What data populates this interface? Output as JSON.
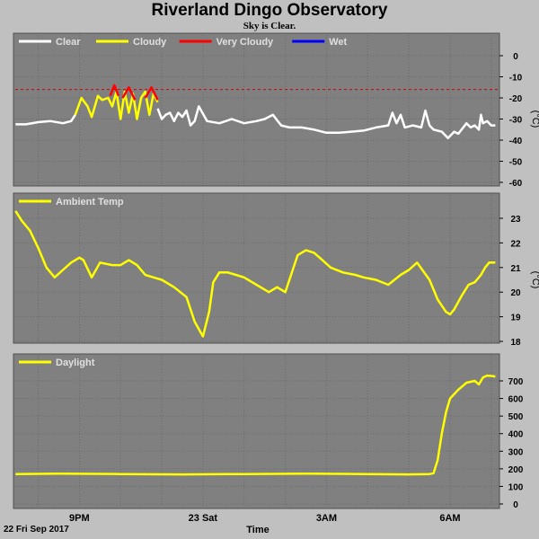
{
  "title": "Riverland Dingo Observatory",
  "subtitle": "Sky is Clear.",
  "date_label": "22 Fri Sep 2017",
  "time_label": "Time",
  "colors": {
    "panel_bg": "#808080",
    "frame": "#c0c0c0",
    "clear": "#ffffff",
    "cloudy": "#ffff00",
    "very_cloudy": "#ff0000",
    "wet": "#0000ff",
    "threshold": "#cc0000",
    "temp": "#ffff00",
    "daylight": "#ffff00"
  },
  "chart_data": [
    {
      "type": "line",
      "panel": "sky",
      "legend": [
        "Clear",
        "Cloudy",
        "Very Cloudy",
        "Wet"
      ],
      "ylabel": "(°C)",
      "ylim": [
        -60,
        0
      ],
      "yticks": [
        0,
        -10,
        -20,
        -30,
        -40,
        -50,
        -60
      ],
      "xlim": [
        19.4,
        31.2
      ],
      "xticks": [
        {
          "x": 21,
          "label": "9PM"
        },
        {
          "x": 24,
          "label": "23 Sat"
        },
        {
          "x": 27,
          "label": "3AM"
        },
        {
          "x": 30,
          "label": "6AM"
        }
      ],
      "threshold": -16,
      "series": [
        {
          "name": "Clear",
          "x": [
            19.45,
            19.7,
            20.0,
            20.3,
            20.6,
            20.8,
            20.9
          ],
          "y": [
            -32.5,
            -32.5,
            -31.5,
            -31,
            -32,
            -31,
            -28
          ]
        },
        {
          "name": "Cloudy",
          "x": [
            20.9,
            21.05,
            21.2,
            21.3,
            21.45,
            21.55,
            21.7,
            21.8,
            21.9,
            22.0,
            22.1,
            22.2,
            22.3,
            22.4,
            22.5,
            22.6,
            22.7,
            22.8,
            22.9
          ],
          "y": [
            -28,
            -20,
            -24,
            -29,
            -19,
            -21,
            -20,
            -24,
            -17,
            -30,
            -17,
            -27,
            -18,
            -30,
            -20,
            -17,
            -28,
            -18,
            -22
          ]
        },
        {
          "name": "Very Cloudy",
          "x": [
            21.75,
            21.85,
            21.95
          ],
          "y": [
            -19,
            -14,
            -19
          ]
        },
        {
          "name": "Very Cloudy",
          "x": [
            22.05,
            22.2,
            22.35
          ],
          "y": [
            -20,
            -15,
            -21
          ]
        },
        {
          "name": "Very Cloudy",
          "x": [
            22.6,
            22.75,
            22.9
          ],
          "y": [
            -20,
            -15,
            -21
          ]
        },
        {
          "name": "Clear",
          "x": [
            22.9,
            23.0,
            23.1,
            23.2,
            23.3,
            23.4,
            23.5,
            23.6,
            23.7,
            23.8,
            23.9,
            24.1,
            24.4,
            24.7,
            25.0,
            25.3,
            25.5,
            25.7,
            25.9,
            26.1,
            26.4,
            26.7,
            27.0,
            27.3,
            27.6,
            27.9,
            28.2,
            28.5,
            28.6,
            28.7,
            28.8,
            28.9,
            29.1,
            29.3,
            29.4,
            29.5,
            29.6,
            29.8,
            29.95,
            30.1,
            30.2,
            30.4,
            30.5,
            30.6,
            30.7,
            30.75,
            30.8,
            30.9,
            31.0,
            31.1
          ],
          "y": [
            -25,
            -30,
            -28,
            -27,
            -31,
            -27,
            -29,
            -26,
            -33,
            -31,
            -24,
            -31,
            -32,
            -30,
            -32,
            -31,
            -30,
            -28,
            -33,
            -34,
            -34,
            -35,
            -36.5,
            -36.5,
            -36,
            -35.5,
            -34,
            -33,
            -27,
            -32,
            -28,
            -34,
            -33,
            -34,
            -26,
            -33,
            -35,
            -36,
            -39,
            -36,
            -37,
            -32,
            -34,
            -33,
            -35,
            -28,
            -32,
            -31,
            -33,
            -33
          ]
        }
      ]
    },
    {
      "type": "line",
      "panel": "temp",
      "legend": [
        "Ambient Temp"
      ],
      "ylabel": "(°C)",
      "ylim": [
        17.85,
        23.75
      ],
      "yticks": [
        18,
        19,
        20,
        21,
        22,
        23
      ],
      "xlim": [
        19.4,
        31.2
      ],
      "series": [
        {
          "name": "Ambient Temp",
          "x": [
            19.45,
            19.6,
            19.8,
            20.0,
            20.2,
            20.4,
            20.6,
            20.8,
            21.0,
            21.1,
            21.3,
            21.5,
            21.8,
            22.0,
            22.2,
            22.4,
            22.6,
            22.8,
            23.0,
            23.3,
            23.6,
            23.8,
            24.0,
            24.15,
            24.25,
            24.4,
            24.6,
            24.8,
            25.0,
            25.3,
            25.6,
            25.8,
            26.0,
            26.3,
            26.5,
            26.7,
            26.9,
            27.1,
            27.4,
            27.7,
            27.9,
            28.2,
            28.5,
            28.8,
            29.0,
            29.2,
            29.5,
            29.7,
            29.9,
            30.0,
            30.1,
            30.3,
            30.45,
            30.6,
            30.75,
            30.85,
            30.95,
            31.1
          ],
          "y": [
            23.3,
            22.9,
            22.5,
            21.8,
            21.0,
            20.6,
            20.9,
            21.2,
            21.4,
            21.3,
            20.6,
            21.2,
            21.1,
            21.1,
            21.3,
            21.1,
            20.7,
            20.6,
            20.5,
            20.2,
            19.8,
            18.8,
            18.2,
            19.2,
            20.4,
            20.8,
            20.8,
            20.7,
            20.6,
            20.3,
            20.0,
            20.2,
            20.0,
            21.5,
            21.7,
            21.6,
            21.3,
            21.0,
            20.8,
            20.7,
            20.6,
            20.5,
            20.3,
            20.7,
            20.9,
            21.2,
            20.5,
            19.7,
            19.2,
            19.1,
            19.3,
            19.9,
            20.3,
            20.4,
            20.7,
            21.0,
            21.2,
            21.2
          ]
        }
      ]
    },
    {
      "type": "line",
      "panel": "daylight",
      "legend": [
        "Daylight"
      ],
      "ylim": [
        0,
        790
      ],
      "yticks": [
        0,
        100,
        200,
        300,
        400,
        500,
        600,
        700
      ],
      "xlim": [
        19.4,
        31.2
      ],
      "series": [
        {
          "name": "Daylight",
          "x": [
            19.45,
            20.5,
            22.0,
            23.5,
            25.0,
            26.5,
            28.0,
            29.0,
            29.5,
            29.6,
            29.7,
            29.8,
            29.9,
            30.0,
            30.2,
            30.4,
            30.6,
            30.7,
            30.8,
            30.9,
            31.0,
            31.1
          ],
          "y": [
            170,
            172,
            170,
            168,
            170,
            172,
            170,
            168,
            170,
            175,
            250,
            400,
            520,
            600,
            650,
            690,
            700,
            680,
            720,
            730,
            728,
            725
          ]
        }
      ]
    }
  ]
}
